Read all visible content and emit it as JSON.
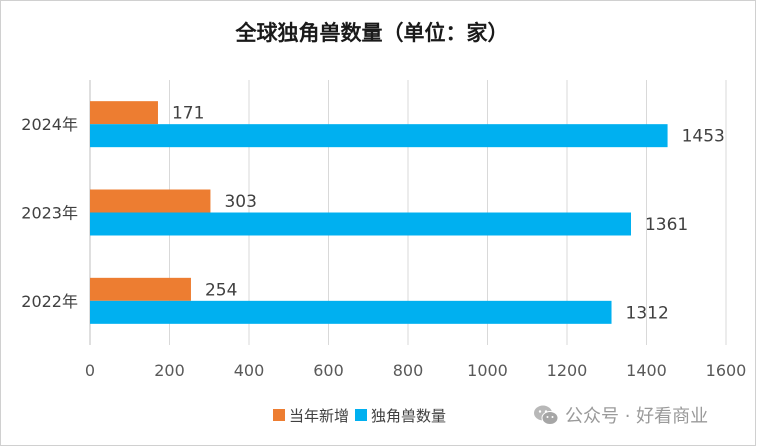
{
  "chart_data": {
    "type": "bar",
    "orientation": "horizontal",
    "title": "全球独角兽数量（单位：家）",
    "categories": [
      "2024年",
      "2023年",
      "2022年"
    ],
    "series": [
      {
        "name": "当年新增",
        "values": [
          171,
          303,
          254
        ],
        "color": "#ED7D31"
      },
      {
        "name": "独角兽数量",
        "values": [
          1453,
          1361,
          1312
        ],
        "color": "#00B0F0"
      }
    ],
    "xlim": [
      0,
      1600
    ],
    "xticks": [
      "0",
      "200",
      "400",
      "600",
      "800",
      "1000",
      "1200",
      "1400",
      "1600"
    ],
    "grid": true,
    "legend": "bottom"
  },
  "watermark": {
    "text": "公众号 · 好看商业",
    "icon": "wechat-icon"
  }
}
